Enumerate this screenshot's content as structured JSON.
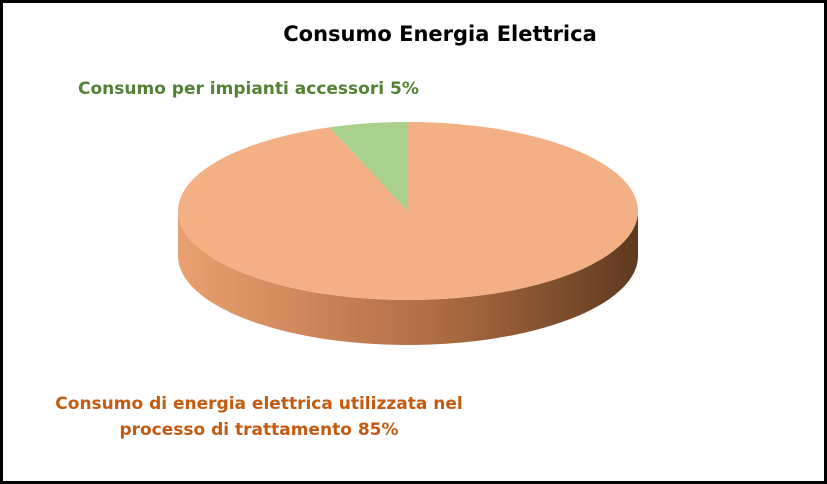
{
  "chart_data": {
    "type": "pie",
    "title": "Consumo Energia Elettrica",
    "categories": [
      "Consumo di energia elettrica utilizzata nel processo di trattamento",
      "Consumo per impianti accessori"
    ],
    "values": [
      85,
      5
    ],
    "value_labels": [
      "85%",
      "5%"
    ],
    "colors": [
      "#f2b084",
      "#a9d18e"
    ],
    "label_colors": [
      "#c55a11",
      "#548235"
    ]
  }
}
